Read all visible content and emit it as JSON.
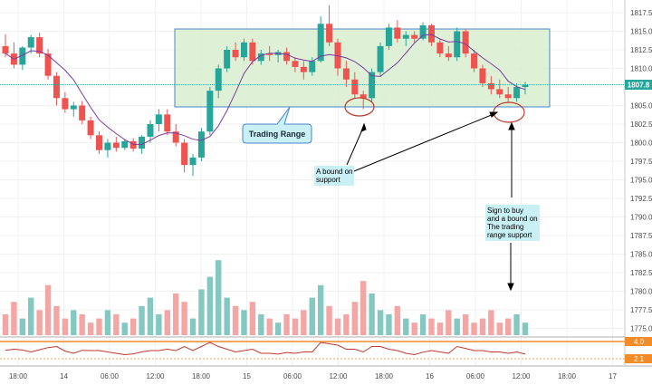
{
  "chart_data": {
    "type": "candlestick",
    "title": "",
    "price_axis": {
      "ticks": [
        "1817.5",
        "1815.0",
        "1812.5",
        "1810.0",
        "1807.5",
        "1805.0",
        "1802.5",
        "1800.0",
        "1797.5",
        "1795.0",
        "1792.5",
        "1790.0",
        "1787.5",
        "1785.0",
        "1782.5",
        "1780.0",
        "1777.5",
        "1775.0"
      ],
      "current_price_label": "1807.8",
      "current_price": 1807.8
    },
    "time_axis": {
      "ticks": [
        "18:00",
        "14",
        "06:00",
        "12:00",
        "18:00",
        "15",
        "06:00",
        "12:00",
        "18:00",
        "16",
        "06:00",
        "12:00",
        "18:00",
        "17"
      ]
    },
    "oscillator": {
      "labels": [
        "4.0",
        "2.1"
      ],
      "upper_level": 4.0,
      "current": 2.1
    },
    "trading_range": {
      "top": 1815.5,
      "bottom": 1805.0
    },
    "candles_approx": [
      [
        1813.0,
        1814.6,
        1811.5,
        1812.0
      ],
      [
        1812.0,
        1813.5,
        1810.0,
        1810.5
      ],
      [
        1810.5,
        1813.0,
        1809.8,
        1812.8
      ],
      [
        1812.8,
        1814.5,
        1812.0,
        1814.2
      ],
      [
        1814.2,
        1814.8,
        1811.5,
        1812.0
      ],
      [
        1812.0,
        1812.6,
        1808.5,
        1809.0
      ],
      [
        1809.0,
        1809.5,
        1805.0,
        1806.0
      ],
      [
        1806.0,
        1806.8,
        1804.0,
        1804.5
      ],
      [
        1804.5,
        1805.5,
        1803.5,
        1805.0
      ],
      [
        1805.0,
        1805.6,
        1802.5,
        1803.0
      ],
      [
        1803.0,
        1803.5,
        1800.5,
        1801.0
      ],
      [
        1801.0,
        1801.5,
        1798.5,
        1799.0
      ],
      [
        1799.0,
        1800.5,
        1798.0,
        1800.0
      ],
      [
        1800.0,
        1800.8,
        1798.8,
        1799.3
      ],
      [
        1799.3,
        1800.5,
        1799.0,
        1800.2
      ],
      [
        1800.2,
        1800.6,
        1798.8,
        1799.2
      ],
      [
        1799.2,
        1801.0,
        1798.5,
        1800.8
      ],
      [
        1800.8,
        1803.0,
        1800.0,
        1802.5
      ],
      [
        1802.5,
        1804.5,
        1801.5,
        1803.8
      ],
      [
        1803.8,
        1804.5,
        1801.0,
        1801.5
      ],
      [
        1801.5,
        1802.5,
        1799.5,
        1800.0
      ],
      [
        1800.0,
        1800.5,
        1796.0,
        1797.0
      ],
      [
        1797.0,
        1798.5,
        1795.5,
        1798.0
      ],
      [
        1798.0,
        1802.0,
        1797.5,
        1801.5
      ],
      [
        1801.5,
        1807.5,
        1801.0,
        1807.0
      ],
      [
        1807.0,
        1810.5,
        1806.0,
        1810.0
      ],
      [
        1810.0,
        1813.0,
        1809.5,
        1812.5
      ],
      [
        1812.5,
        1813.5,
        1811.0,
        1811.5
      ],
      [
        1811.5,
        1814.0,
        1811.0,
        1813.5
      ],
      [
        1813.5,
        1814.0,
        1810.5,
        1811.0
      ],
      [
        1811.0,
        1812.5,
        1810.5,
        1812.0
      ],
      [
        1812.0,
        1813.0,
        1811.0,
        1811.8
      ],
      [
        1811.8,
        1812.5,
        1810.8,
        1812.2
      ],
      [
        1812.2,
        1812.8,
        1810.5,
        1811.0
      ],
      [
        1811.0,
        1811.5,
        1809.5,
        1810.2
      ],
      [
        1810.2,
        1811.0,
        1808.5,
        1809.5
      ],
      [
        1809.5,
        1811.5,
        1809.0,
        1811.0
      ],
      [
        1811.0,
        1817.0,
        1810.8,
        1816.0
      ],
      [
        1816.0,
        1818.5,
        1813.0,
        1813.5
      ],
      [
        1813.5,
        1814.0,
        1809.0,
        1810.0
      ],
      [
        1810.0,
        1811.0,
        1807.5,
        1808.5
      ],
      [
        1808.5,
        1809.5,
        1806.0,
        1806.5
      ],
      [
        1806.5,
        1807.0,
        1804.5,
        1806.0
      ],
      [
        1806.0,
        1810.0,
        1805.5,
        1809.5
      ],
      [
        1809.5,
        1813.5,
        1809.0,
        1813.0
      ],
      [
        1813.0,
        1816.0,
        1812.5,
        1815.5
      ],
      [
        1815.5,
        1816.5,
        1813.5,
        1814.0
      ],
      [
        1814.0,
        1815.0,
        1813.0,
        1814.5
      ],
      [
        1814.5,
        1815.0,
        1813.5,
        1814.0
      ],
      [
        1814.0,
        1816.2,
        1813.8,
        1815.8
      ],
      [
        1815.8,
        1816.0,
        1813.0,
        1813.5
      ],
      [
        1813.5,
        1814.0,
        1811.5,
        1812.0
      ],
      [
        1812.0,
        1813.0,
        1811.0,
        1811.5
      ],
      [
        1811.5,
        1815.5,
        1811.0,
        1815.0
      ],
      [
        1815.0,
        1815.3,
        1811.5,
        1812.0
      ],
      [
        1812.0,
        1812.5,
        1809.5,
        1810.0
      ],
      [
        1810.0,
        1810.5,
        1807.5,
        1808.0
      ],
      [
        1808.0,
        1809.0,
        1806.5,
        1807.2
      ],
      [
        1807.2,
        1808.5,
        1806.0,
        1806.5
      ],
      [
        1806.5,
        1807.5,
        1805.5,
        1806.0
      ],
      [
        1806.0,
        1808.0,
        1805.5,
        1807.5
      ],
      [
        1807.5,
        1808.2,
        1806.5,
        1807.8
      ]
    ],
    "volume_approx": [
      5,
      8,
      4,
      9,
      6,
      12,
      7,
      4,
      6,
      5,
      3,
      4,
      6,
      5,
      3,
      4,
      7,
      9,
      5,
      6,
      10,
      8,
      4,
      11,
      14,
      18,
      9,
      7,
      6,
      8,
      5,
      4,
      3,
      5,
      4,
      6,
      9,
      12,
      7,
      4,
      5,
      8,
      13,
      10,
      6,
      5,
      7,
      4,
      3,
      5,
      4,
      3,
      6,
      4,
      5,
      3,
      4,
      6,
      3,
      4,
      5,
      3
    ]
  },
  "annotations": {
    "trading_range_label": "Trading Range",
    "bound_label": [
      "A bound on",
      "support"
    ],
    "sign_label": [
      "Sign to buy",
      "and a bound on",
      "The trading",
      "range support"
    ]
  },
  "colors": {
    "up": "#26a69a",
    "down": "#ef5350",
    "volume_up": "#83c9c1",
    "volume_down": "#f3a6a4",
    "range_fill": "#d8efd0",
    "range_stroke": "#4a86c8",
    "ma_line": "#7b3aa0",
    "osc_line": "#c0392b",
    "orange": "#f28c28",
    "price_tag": "#26a69a",
    "annotation_box": "#c9f0f5",
    "ellipse": "#c0392b"
  }
}
